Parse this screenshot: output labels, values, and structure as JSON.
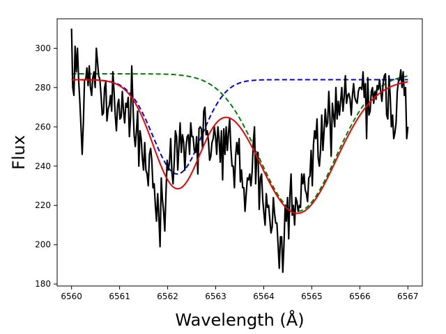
{
  "chart_data": {
    "type": "line",
    "title": "",
    "xlabel": "Wavelength (Å)",
    "ylabel": "Flux",
    "xlim": [
      6559.7,
      6567.3
    ],
    "ylim": [
      179,
      315
    ],
    "grid": false,
    "xticks": [
      6560,
      6561,
      6562,
      6563,
      6564,
      6565,
      6566,
      6567
    ],
    "yticks": [
      180,
      200,
      220,
      240,
      260,
      280,
      300
    ],
    "series": [
      {
        "role": "observed",
        "color": "#000000",
        "style": "solid",
        "x_start": 6560.0,
        "x_end": 6567.0,
        "y": [
          310,
          280,
          276,
          301,
          288,
          300,
          284,
          273,
          260,
          246,
          262,
          284,
          284,
          290,
          281,
          291,
          280,
          276,
          285,
          288,
          280,
          300,
          293,
          286,
          284,
          276,
          266,
          267,
          280,
          283,
          263,
          269,
          271,
          276,
          268,
          288,
          278,
          266,
          258,
          271,
          274,
          264,
          265,
          278,
          268,
          262,
          272,
          270,
          275,
          255,
          265,
          291,
          272,
          256,
          250,
          258,
          268,
          240,
          258,
          254,
          244,
          238,
          252,
          238,
          236,
          230,
          246,
          249,
          243,
          229,
          231,
          220,
          212,
          226,
          214,
          199,
          234,
          223,
          217,
          207,
          226,
          243,
          238,
          242,
          254,
          237,
          231,
          242,
          258,
          255,
          238,
          250,
          262,
          247,
          256,
          252,
          238,
          250,
          255,
          256,
          246,
          262,
          255,
          255,
          248,
          247,
          255,
          236,
          259,
          260,
          259,
          249,
          268,
          270,
          256,
          258,
          253,
          243,
          245,
          252,
          254,
          260,
          255,
          246,
          260,
          254,
          242,
          258,
          233,
          259,
          246,
          260,
          248,
          257,
          264,
          249,
          240,
          240,
          229,
          245,
          252,
          246,
          254,
          232,
          238,
          229,
          229,
          217,
          226,
          234,
          233,
          236,
          230,
          237,
          252,
          260,
          231,
          246,
          247,
          218,
          234,
          236,
          223,
          216,
          210,
          226,
          219,
          220,
          213,
          206,
          209,
          224,
          216,
          211,
          211,
          200,
          188,
          204,
          204,
          186,
          200,
          220,
          212,
          224,
          203,
          225,
          236,
          215,
          220,
          210,
          224,
          222,
          217,
          220,
          219,
          236,
          231,
          236,
          228,
          226,
          222,
          234,
          235,
          248,
          230,
          251,
          258,
          254,
          264,
          244,
          240,
          248,
          266,
          248,
          258,
          269,
          260,
          262,
          278,
          264,
          245,
          272,
          266,
          260,
          280,
          264,
          273,
          266,
          273,
          280,
          268,
          275,
          286,
          272,
          276,
          277,
          274,
          266,
          276,
          282,
          275,
          273,
          272,
          278,
          280,
          280,
          279,
          288,
          275,
          282,
          254,
          285,
          266,
          268,
          278,
          280,
          272,
          278,
          274,
          281,
          279,
          284,
          278,
          273,
          282,
          286,
          287,
          266,
          264,
          286,
          276,
          260,
          266,
          254,
          257,
          262,
          278,
          283,
          284,
          289,
          280,
          288,
          276,
          280,
          254,
          260
        ]
      },
      {
        "role": "fit-component-1",
        "color": "#0000ee",
        "style": "dashed",
        "profile": {
          "continuum": 284,
          "center": 6562.2,
          "depth": 48,
          "sigma": 0.5
        }
      },
      {
        "role": "fit-component-2",
        "color": "#008000",
        "style": "dashed",
        "profile": {
          "continuum": 287,
          "center": 6564.7,
          "depth": 70,
          "sigma": 0.8
        }
      },
      {
        "role": "total-fit",
        "color": "#ee0000",
        "style": "solid",
        "profile": {
          "continuum": 284,
          "components": [
            {
              "center": 6562.2,
              "depth": 55,
              "sigma": 0.5
            },
            {
              "center": 6564.7,
              "depth": 68,
              "sigma": 0.8
            }
          ]
        }
      }
    ]
  }
}
